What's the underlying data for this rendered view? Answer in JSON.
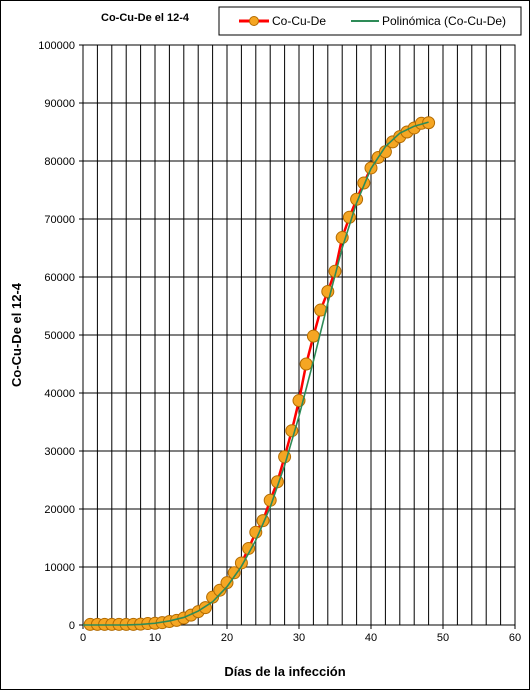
{
  "chart_data": {
    "type": "line",
    "title": "Co-Cu-De el 12-4",
    "xlabel": "Días de la infección",
    "ylabel": "Co-Cu-De el 12-4",
    "xlim": [
      0,
      60
    ],
    "ylim": [
      0,
      100000
    ],
    "x_ticks": [
      "0",
      "10",
      "20",
      "30",
      "40",
      "50",
      "60"
    ],
    "y_ticks": [
      "0",
      "10000",
      "20000",
      "30000",
      "40000",
      "50000",
      "60000",
      "70000",
      "80000",
      "90000",
      "100000"
    ],
    "grid": true,
    "legend_position": "top-right",
    "colors": {
      "series": "#ff0000",
      "marker_fill": "#f5a623",
      "marker_edge": "#b36b00",
      "trend": "#2e8b57",
      "grid": "#000000"
    },
    "series": [
      {
        "name": "Co-Cu-De",
        "x": [
          1,
          2,
          3,
          4,
          5,
          6,
          7,
          8,
          9,
          10,
          11,
          12,
          13,
          14,
          15,
          16,
          17,
          18,
          19,
          20,
          21,
          22,
          23,
          24,
          25,
          26,
          27,
          28,
          29,
          30,
          31,
          32,
          33,
          34,
          35,
          36,
          37,
          38,
          39,
          40,
          41,
          42,
          43,
          44,
          45,
          46,
          47,
          48
        ],
        "values": [
          100,
          100,
          100,
          100,
          100,
          100,
          100,
          150,
          250,
          300,
          400,
          600,
          800,
          1200,
          1700,
          2300,
          3000,
          4800,
          6000,
          7300,
          9000,
          10700,
          13200,
          16000,
          18000,
          21500,
          24700,
          29000,
          33500,
          38700,
          45000,
          49800,
          54300,
          57500,
          61000,
          66800,
          70300,
          73400,
          76200,
          78800,
          80600,
          81600,
          83300,
          84200,
          85000,
          85700,
          86500,
          86600
        ]
      },
      {
        "name": "Polinómica (Co-Cu-De)",
        "x": [
          0,
          2,
          4,
          6,
          8,
          10,
          12,
          14,
          16,
          18,
          20,
          22,
          24,
          26,
          28,
          30,
          32,
          34,
          36,
          38,
          40,
          42,
          44,
          46,
          48
        ],
        "values": [
          0,
          0,
          0,
          0,
          100,
          300,
          700,
          1300,
          2400,
          4000,
          6600,
          10100,
          14600,
          20300,
          27500,
          36000,
          45500,
          55500,
          65000,
          72800,
          78700,
          82500,
          84800,
          86000,
          86700
        ],
        "style": "trendline"
      }
    ]
  }
}
